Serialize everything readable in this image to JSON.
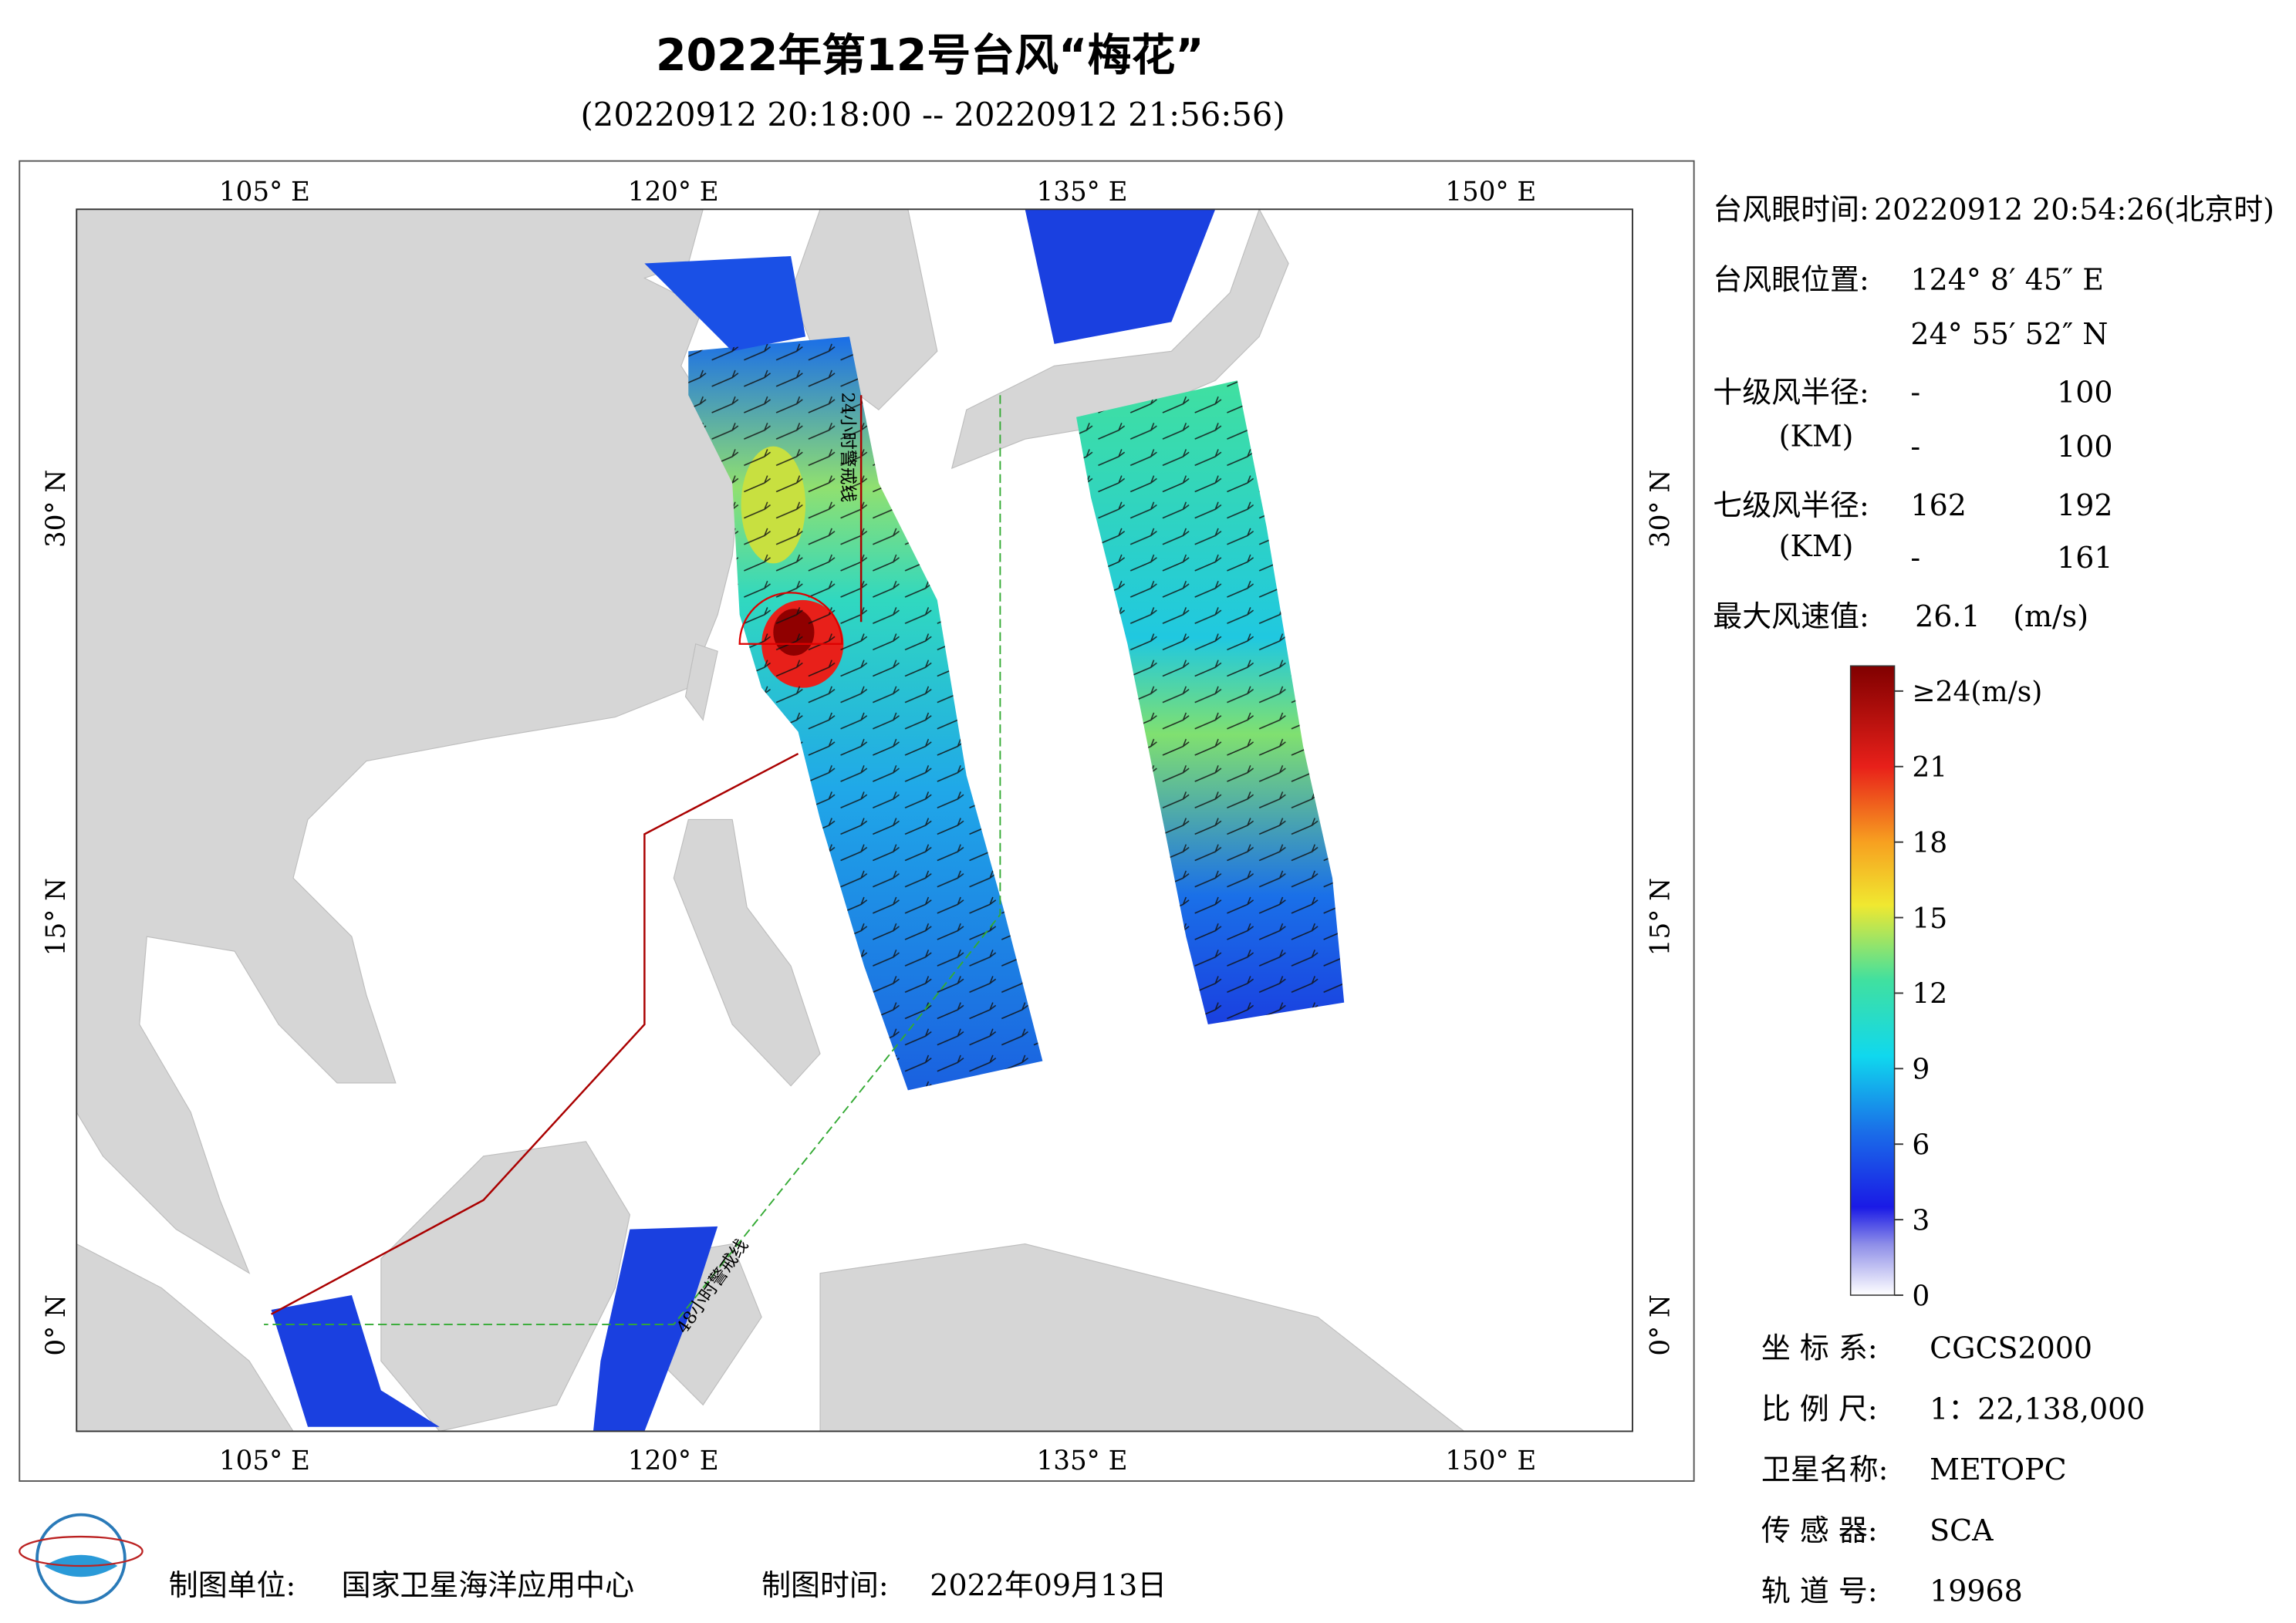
{
  "header": {
    "title": "2022年第12号台风“梅花”",
    "subtitle": "(20220912 20:18:00 -- 20220912 21:56:56)"
  },
  "map": {
    "lonlim": [
      98.1,
      155.2
    ],
    "latlim": [
      -3.9,
      41.0
    ],
    "lonticks": [
      {
        "value": 105,
        "label": "105° E"
      },
      {
        "value": 120,
        "label": "120° E"
      },
      {
        "value": 135,
        "label": "135° E"
      },
      {
        "value": 150,
        "label": "150° E"
      }
    ],
    "latticks": [
      {
        "value": 0,
        "label": "0° N"
      },
      {
        "value": 15,
        "label": "15° N"
      },
      {
        "value": 30,
        "label": "30° N"
      }
    ],
    "grid": true,
    "annotations": [
      "24小时警戒线",
      "48小时警戒线"
    ]
  },
  "info": {
    "eye_time": {
      "label": "台风眼时间:",
      "value": "20220912 20:54:26(北京时)"
    },
    "eye_position": {
      "label": "台风眼位置:",
      "lon": "124° 8′ 45″ E",
      "lat": "24° 55′ 52″ N"
    },
    "radius_10": {
      "label": "十级风半径:",
      "unit": "(KM)",
      "rows": [
        [
          "-",
          100
        ],
        [
          "-",
          100
        ]
      ]
    },
    "radius_7": {
      "label": "七级风半径:",
      "unit": "(KM)",
      "rows": [
        [
          162,
          192
        ],
        [
          "-",
          161
        ]
      ]
    },
    "max_wind": {
      "label": "最大风速值:",
      "value": 26.1,
      "unit": "(m/s)"
    }
  },
  "colorbar": {
    "lim": [
      0,
      25
    ],
    "ticks": [
      0,
      3,
      6,
      9,
      12,
      15,
      18,
      21,
      {
        "value": 24,
        "label": "≥24(m/s)"
      }
    ]
  },
  "meta": [
    {
      "label": "坐 标 系:",
      "value": "CGCS2000"
    },
    {
      "label": "比 例 尺:",
      "value": "1：22,138,000"
    },
    {
      "label": "卫星名称:",
      "value": "METOPC"
    },
    {
      "label": "传 感 器:",
      "value": "SCA"
    },
    {
      "label": "轨 道 号:",
      "value": 19968
    }
  ],
  "footer": {
    "unit_label": "制图单位:",
    "unit": "国家卫星海洋应用中心",
    "date_label": "制图时间:",
    "date": "2022年09月13日"
  }
}
